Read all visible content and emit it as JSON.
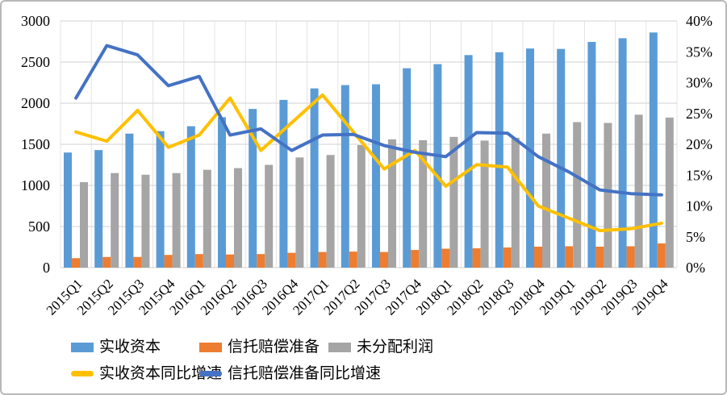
{
  "chart_data": {
    "type": "combo (grouped bar + line, dual y-axis)",
    "title": "",
    "categories": [
      "2015Q1",
      "2015Q2",
      "2015Q3",
      "2015Q4",
      "2016Q1",
      "2016Q2",
      "2016Q3",
      "2016Q4",
      "2017Q1",
      "2017Q2",
      "2017Q3",
      "2017Q4",
      "2018Q1",
      "2018Q2",
      "2018Q3",
      "2018Q4",
      "2019Q1",
      "2019Q2",
      "2019Q3",
      "2019Q4"
    ],
    "left_axis": {
      "min": 0,
      "max": 3000,
      "step": 500,
      "ticks": [
        "0",
        "500",
        "1000",
        "1500",
        "2000",
        "2500",
        "3000"
      ]
    },
    "right_axis": {
      "min": 0,
      "max": 40,
      "step": 5,
      "ticks": [
        "0%",
        "5%",
        "10%",
        "15%",
        "20%",
        "25%",
        "30%",
        "35%",
        "40%"
      ]
    },
    "gridlines": {
      "horizontal": true,
      "vertical": true
    },
    "legend_position": "bottom",
    "series": [
      {
        "name": "实收资本",
        "type": "bar",
        "axis": "left",
        "color": "#5B9BD5",
        "values": [
          1400,
          1430,
          1630,
          1660,
          1720,
          1830,
          1930,
          2040,
          2180,
          2220,
          2230,
          2425,
          2475,
          2585,
          2620,
          2665,
          2660,
          2745,
          2790,
          2860
        ]
      },
      {
        "name": "信托赔偿准备",
        "type": "bar",
        "axis": "left",
        "color": "#ED7D31",
        "values": [
          115,
          130,
          130,
          155,
          165,
          160,
          165,
          180,
          190,
          195,
          190,
          215,
          230,
          235,
          245,
          255,
          260,
          255,
          260,
          295
        ]
      },
      {
        "name": "未分配利润",
        "type": "bar",
        "axis": "left",
        "color": "#A5A5A5",
        "values": [
          1040,
          1150,
          1130,
          1150,
          1190,
          1210,
          1250,
          1340,
          1370,
          1490,
          1560,
          1550,
          1590,
          1545,
          1580,
          1630,
          1770,
          1760,
          1860,
          1825
        ]
      },
      {
        "name": "实收资本同比增速",
        "type": "line",
        "axis": "right",
        "color": "#FFC000",
        "values": [
          22,
          20.5,
          25.5,
          19.5,
          21.5,
          27.5,
          19,
          23.5,
          28,
          22,
          16,
          19,
          13.2,
          16.7,
          16.3,
          10,
          8,
          6,
          6.3,
          7.2
        ]
      },
      {
        "name": "信托赔偿准备同比增速",
        "type": "line",
        "axis": "right",
        "color": "#4472C4",
        "values": [
          27.5,
          36,
          34.5,
          29.5,
          31,
          21.5,
          22.5,
          19,
          21.5,
          21.6,
          19.8,
          18.7,
          18,
          21.9,
          21.8,
          18,
          15.5,
          12.6,
          12,
          11.8
        ]
      }
    ]
  },
  "style": {
    "grid_color": "#d9d9d9",
    "vgrid_color": "#e4e4e4",
    "axis_text_color": "#000000",
    "frame_border_color": "#b9b9b9",
    "background": "#ffffff"
  }
}
